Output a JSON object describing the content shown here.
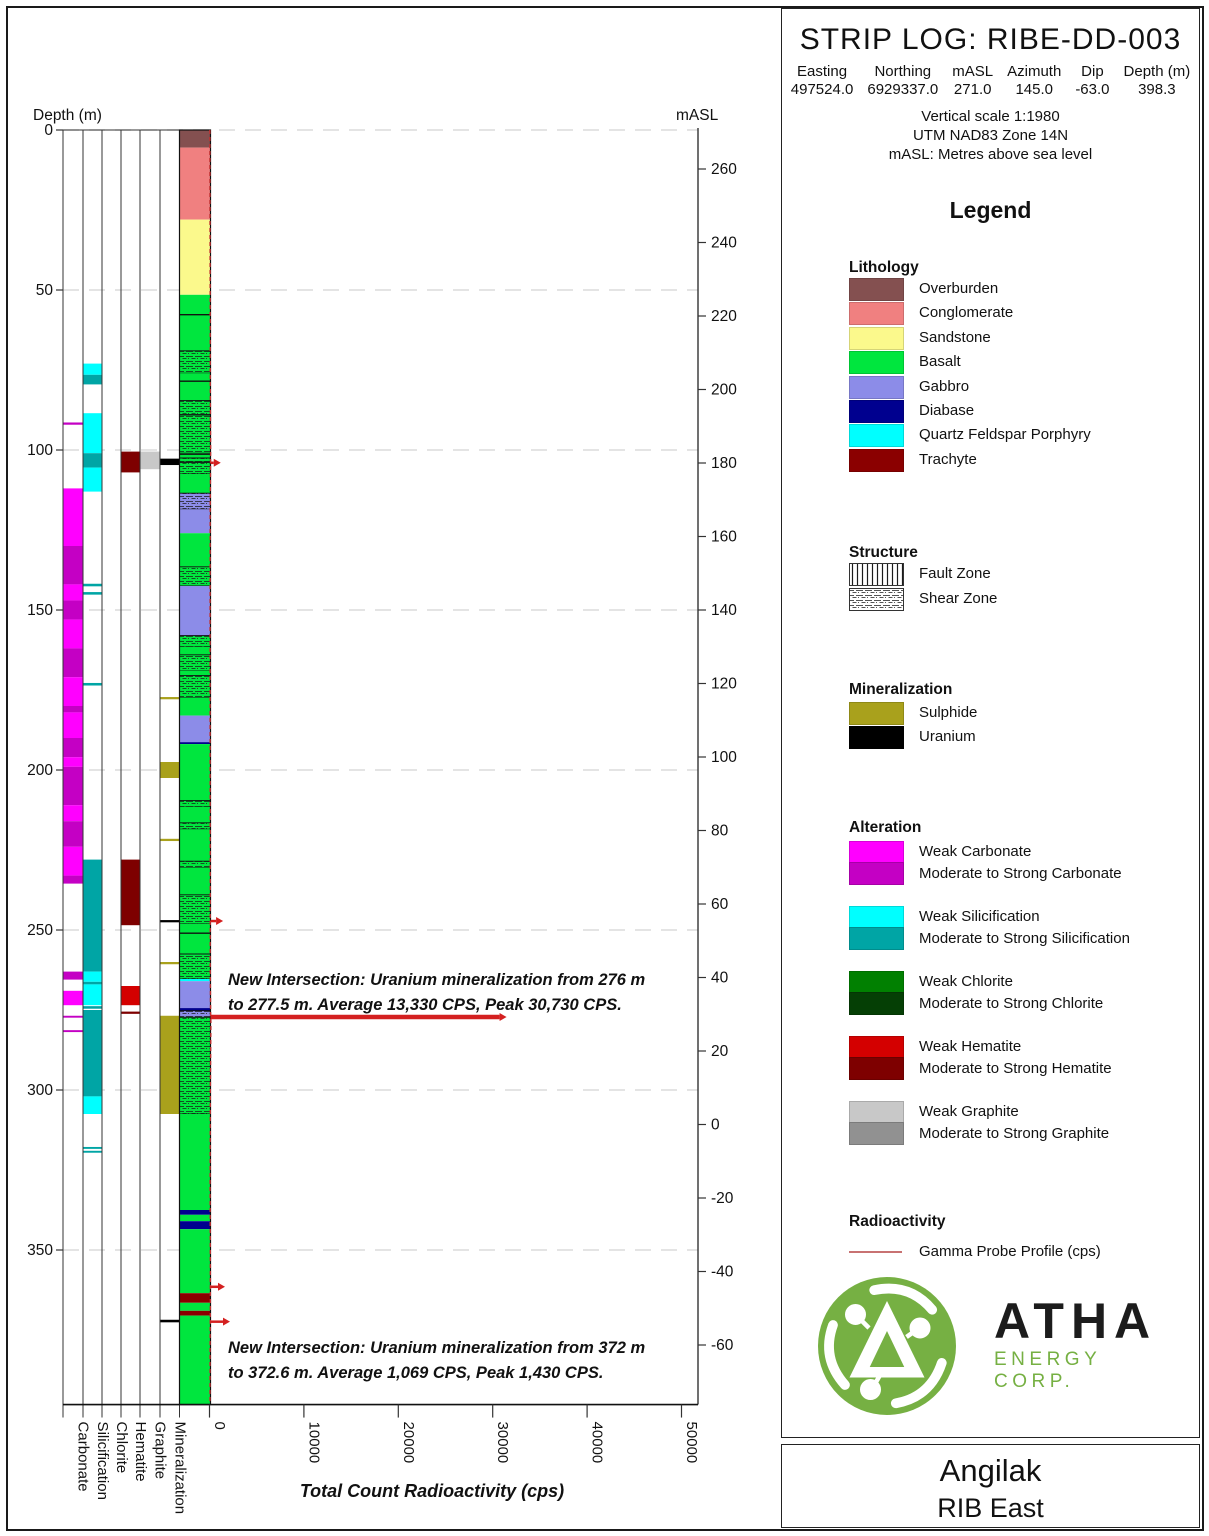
{
  "header": {
    "title": "STRIP LOG: RIBE-DD-003",
    "fields": [
      {
        "label": "Easting",
        "value": "497524.0"
      },
      {
        "label": "Northing",
        "value": "6929337.0"
      },
      {
        "label": "mASL",
        "value": "271.0"
      },
      {
        "label": "Azimuth",
        "value": "145.0"
      },
      {
        "label": "Dip",
        "value": "-63.0"
      },
      {
        "label": "Depth (m)",
        "value": "398.3"
      }
    ],
    "notes": [
      "Vertical scale 1:1980",
      "UTM NAD83 Zone 14N",
      "mASL: Metres above sea level"
    ]
  },
  "legend": {
    "title": "Legend",
    "lithology": {
      "heading": "Lithology",
      "items": [
        {
          "label": "Overburden",
          "color": "#845050"
        },
        {
          "label": "Conglomerate",
          "color": "#f08080"
        },
        {
          "label": "Sandstone",
          "color": "#fbf98c"
        },
        {
          "label": "Basalt",
          "color": "#00e63e"
        },
        {
          "label": "Gabbro",
          "color": "#8c8ce8"
        },
        {
          "label": "Diabase",
          "color": "#00008f"
        },
        {
          "label": "Quartz Feldspar Porphyry",
          "color": "#00ffff"
        },
        {
          "label": "Trachyte",
          "color": "#8b0000"
        }
      ]
    },
    "structure": {
      "heading": "Structure",
      "items": [
        {
          "label": "Fault Zone",
          "pattern": "fault"
        },
        {
          "label": "Shear Zone",
          "pattern": "shear"
        }
      ]
    },
    "mineralization": {
      "heading": "Mineralization",
      "items": [
        {
          "label": "Sulphide",
          "color": "#a9a11c"
        },
        {
          "label": "Uranium",
          "color": "#000000"
        }
      ]
    },
    "alteration": {
      "heading": "Alteration",
      "groups": [
        {
          "weak_label": "Weak Carbonate",
          "strong_label": "Moderate to Strong Carbonate",
          "weak_color": "#ff00ff",
          "strong_color": "#c400c4"
        },
        {
          "weak_label": "Weak Silicification",
          "strong_label": "Moderate to Strong Silicification",
          "weak_color": "#00ffff",
          "strong_color": "#00a5a5"
        },
        {
          "weak_label": "Weak Chlorite",
          "strong_label": "Moderate to Strong Chlorite",
          "weak_color": "#018001",
          "strong_color": "#053f05"
        },
        {
          "weak_label": "Weak Hematite",
          "strong_label": "Moderate to Strong Hematite",
          "weak_color": "#d40000",
          "strong_color": "#7e0000"
        },
        {
          "weak_label": "Weak Graphite",
          "strong_label": "Moderate to Strong Graphite",
          "weak_color": "#c8c8c8",
          "strong_color": "#919191"
        }
      ]
    },
    "radioactivity": {
      "heading": "Radioactivity",
      "line_label": "Gamma Probe Profile (cps)",
      "line_color": "#c87272"
    }
  },
  "logo": {
    "name": "ATHA",
    "sub": "ENERGY CORP.",
    "green": "#76b043"
  },
  "footer": {
    "line1": "Angilak",
    "line2": "RIB East"
  },
  "chart_data": {
    "type": "strip-log",
    "hole_id": "RIBE-DD-003",
    "max_depth_m": 398.3,
    "depth_axis": {
      "label": "Depth (m)",
      "ticks": [
        0,
        50,
        100,
        150,
        200,
        250,
        300,
        350
      ]
    },
    "masl_axis": {
      "label": "mASL",
      "ticks": [
        260,
        240,
        220,
        200,
        180,
        160,
        140,
        120,
        100,
        80,
        60,
        40,
        20,
        0,
        -20,
        -40,
        -60
      ]
    },
    "gamma_axis": {
      "title": "Total Count Radioactivity (cps)",
      "ticks": [
        0,
        10000,
        20000,
        30000,
        40000,
        50000
      ],
      "max": 50000,
      "profile_color": "#d42020"
    },
    "columns": [
      {
        "key": "carbonate",
        "label": "Carbonate"
      },
      {
        "key": "silicification",
        "label": "Silicification"
      },
      {
        "key": "chlorite",
        "label": "Chlorite"
      },
      {
        "key": "hematite",
        "label": "Hematite"
      },
      {
        "key": "graphite",
        "label": "Graphite"
      },
      {
        "key": "mineralization",
        "label": "Mineralization"
      }
    ],
    "alteration_intervals": {
      "carbonate": [
        {
          "from": 91.4,
          "to": 92.1,
          "grade": "strong"
        },
        {
          "from": 112,
          "to": 130,
          "grade": "weak"
        },
        {
          "from": 130,
          "to": 142,
          "grade": "strong"
        },
        {
          "from": 142,
          "to": 147,
          "grade": "weak"
        },
        {
          "from": 147,
          "to": 153,
          "grade": "strong"
        },
        {
          "from": 153,
          "to": 162,
          "grade": "weak"
        },
        {
          "from": 162,
          "to": 171,
          "grade": "strong"
        },
        {
          "from": 171,
          "to": 180,
          "grade": "weak"
        },
        {
          "from": 180,
          "to": 182,
          "grade": "strong"
        },
        {
          "from": 182,
          "to": 190,
          "grade": "weak"
        },
        {
          "from": 190,
          "to": 196,
          "grade": "strong"
        },
        {
          "from": 196,
          "to": 199,
          "grade": "weak"
        },
        {
          "from": 199,
          "to": 211,
          "grade": "strong"
        },
        {
          "from": 211,
          "to": 216,
          "grade": "weak"
        },
        {
          "from": 216,
          "to": 224,
          "grade": "strong"
        },
        {
          "from": 224,
          "to": 233,
          "grade": "weak"
        },
        {
          "from": 233,
          "to": 235.5,
          "grade": "strong"
        },
        {
          "from": 263,
          "to": 265.5,
          "grade": "strong"
        },
        {
          "from": 269,
          "to": 273.5,
          "grade": "weak"
        },
        {
          "from": 276.8,
          "to": 277.4,
          "grade": "strong"
        },
        {
          "from": 281.3,
          "to": 281.9,
          "grade": "strong"
        }
      ],
      "silicification": [
        {
          "from": 73,
          "to": 76.5,
          "grade": "weak"
        },
        {
          "from": 76.5,
          "to": 79.5,
          "grade": "strong"
        },
        {
          "from": 88.5,
          "to": 101,
          "grade": "weak"
        },
        {
          "from": 101,
          "to": 105.5,
          "grade": "strong"
        },
        {
          "from": 105.5,
          "to": 113,
          "grade": "weak"
        },
        {
          "from": 141.8,
          "to": 142.6,
          "grade": "strong"
        },
        {
          "from": 144.4,
          "to": 145.2,
          "grade": "strong"
        },
        {
          "from": 172.8,
          "to": 173.6,
          "grade": "strong"
        },
        {
          "from": 228,
          "to": 263,
          "grade": "strong"
        },
        {
          "from": 263,
          "to": 266.2,
          "grade": "weak"
        },
        {
          "from": 266.2,
          "to": 267,
          "grade": "strong"
        },
        {
          "from": 267,
          "to": 273.5,
          "grade": "weak"
        },
        {
          "from": 273.8,
          "to": 274.6,
          "grade": "strong"
        },
        {
          "from": 275,
          "to": 302,
          "grade": "strong"
        },
        {
          "from": 302,
          "to": 307.5,
          "grade": "weak"
        },
        {
          "from": 317.8,
          "to": 318.4,
          "grade": "strong"
        },
        {
          "from": 319,
          "to": 319.6,
          "grade": "strong"
        }
      ],
      "chlorite": [],
      "hematite": [
        {
          "from": 100.5,
          "to": 107,
          "grade": "strong"
        },
        {
          "from": 228,
          "to": 248.5,
          "grade": "strong"
        },
        {
          "from": 267.5,
          "to": 273.5,
          "grade": "weak"
        },
        {
          "from": 275.5,
          "to": 276.2,
          "grade": "strong"
        }
      ],
      "graphite": [
        {
          "from": 100.5,
          "to": 106,
          "grade": "weak"
        }
      ],
      "mineralization": [
        {
          "from": 102.7,
          "to": 104.7,
          "kind": "uranium"
        },
        {
          "from": 177.2,
          "to": 177.9,
          "kind": "sulphide"
        },
        {
          "from": 197.5,
          "to": 202.5,
          "kind": "sulphide"
        },
        {
          "from": 221.5,
          "to": 222.2,
          "kind": "sulphide"
        },
        {
          "from": 246.9,
          "to": 247.6,
          "kind": "uranium"
        },
        {
          "from": 260,
          "to": 260.7,
          "kind": "sulphide"
        },
        {
          "from": 276.8,
          "to": 307.5,
          "kind": "sulphide"
        },
        {
          "from": 371.8,
          "to": 372.6,
          "kind": "uranium"
        }
      ]
    },
    "lithology_intervals": [
      {
        "from": 0,
        "to": 5.5,
        "unit": "Overburden"
      },
      {
        "from": 5.5,
        "to": 28,
        "unit": "Conglomerate"
      },
      {
        "from": 28,
        "to": 51.5,
        "unit": "Sandstone"
      },
      {
        "from": 51.5,
        "to": 69,
        "unit": "Basalt"
      },
      {
        "from": 69,
        "to": 76,
        "unit": "Basalt",
        "shear": true
      },
      {
        "from": 76,
        "to": 84.5,
        "unit": "Basalt"
      },
      {
        "from": 84.5,
        "to": 101,
        "unit": "Basalt",
        "shear": true
      },
      {
        "from": 101,
        "to": 102.5,
        "unit": "Basalt"
      },
      {
        "from": 102.5,
        "to": 107.5,
        "unit": "Basalt",
        "shear": true
      },
      {
        "from": 107.5,
        "to": 113.5,
        "unit": "Basalt"
      },
      {
        "from": 113.5,
        "to": 118.5,
        "unit": "Gabbro",
        "shear": true
      },
      {
        "from": 118.5,
        "to": 126,
        "unit": "Gabbro"
      },
      {
        "from": 126,
        "to": 136.5,
        "unit": "Basalt"
      },
      {
        "from": 136.5,
        "to": 142.5,
        "unit": "Basalt",
        "shear": true
      },
      {
        "from": 142.5,
        "to": 158,
        "unit": "Gabbro"
      },
      {
        "from": 158,
        "to": 161.5,
        "unit": "Basalt",
        "shear": true
      },
      {
        "from": 161.5,
        "to": 164,
        "unit": "Basalt"
      },
      {
        "from": 164,
        "to": 169,
        "unit": "Basalt",
        "shear": true
      },
      {
        "from": 169,
        "to": 170.5,
        "unit": "Basalt"
      },
      {
        "from": 170.5,
        "to": 177.5,
        "unit": "Basalt",
        "shear": true
      },
      {
        "from": 177.5,
        "to": 183,
        "unit": "Basalt"
      },
      {
        "from": 183,
        "to": 191.3,
        "unit": "Gabbro"
      },
      {
        "from": 191.3,
        "to": 191.9,
        "unit": "Diabase"
      },
      {
        "from": 191.9,
        "to": 209.5,
        "unit": "Basalt"
      },
      {
        "from": 209.5,
        "to": 211.5,
        "unit": "Basalt",
        "shear": true
      },
      {
        "from": 211.5,
        "to": 216.5,
        "unit": "Basalt"
      },
      {
        "from": 216.5,
        "to": 218.5,
        "unit": "Basalt",
        "shear": true
      },
      {
        "from": 218.5,
        "to": 228.5,
        "unit": "Basalt"
      },
      {
        "from": 228.5,
        "to": 230.5,
        "unit": "Basalt",
        "shear": true
      },
      {
        "from": 230.5,
        "to": 239,
        "unit": "Basalt"
      },
      {
        "from": 239,
        "to": 248,
        "unit": "Basalt",
        "shear": true
      },
      {
        "from": 248,
        "to": 257.5,
        "unit": "Basalt"
      },
      {
        "from": 257.5,
        "to": 265.3,
        "unit": "Basalt",
        "shear": true
      },
      {
        "from": 265.3,
        "to": 266,
        "unit": "Quartz Feldspar Porphyry"
      },
      {
        "from": 266,
        "to": 274.4,
        "unit": "Gabbro"
      },
      {
        "from": 274.4,
        "to": 275.2,
        "unit": "Diabase"
      },
      {
        "from": 275.2,
        "to": 277.3,
        "unit": "Gabbro",
        "shear": true
      },
      {
        "from": 277.3,
        "to": 307.5,
        "unit": "Basalt",
        "shear": true
      },
      {
        "from": 307.5,
        "to": 337.5,
        "unit": "Basalt"
      },
      {
        "from": 337.5,
        "to": 339,
        "unit": "Diabase"
      },
      {
        "from": 339,
        "to": 341,
        "unit": "Basalt"
      },
      {
        "from": 341,
        "to": 343.5,
        "unit": "Diabase"
      },
      {
        "from": 343.5,
        "to": 363.5,
        "unit": "Basalt"
      },
      {
        "from": 363.5,
        "to": 366.5,
        "unit": "Trachyte"
      },
      {
        "from": 366.5,
        "to": 369,
        "unit": "Basalt"
      },
      {
        "from": 369,
        "to": 370.5,
        "unit": "Trachyte"
      },
      {
        "from": 370.5,
        "to": 398.3,
        "unit": "Basalt"
      }
    ],
    "contact_lines": [
      57.7,
      78.5,
      89,
      101.3,
      103.8,
      251
    ],
    "gamma_profile": [
      {
        "d": 0,
        "v": 40
      },
      {
        "d": 30,
        "v": 55
      },
      {
        "d": 51,
        "v": 70
      },
      {
        "d": 80,
        "v": 80
      },
      {
        "d": 100,
        "v": 120
      },
      {
        "d": 120,
        "v": 70
      },
      {
        "d": 160,
        "v": 60
      },
      {
        "d": 200,
        "v": 65
      },
      {
        "d": 240,
        "v": 80
      },
      {
        "d": 260,
        "v": 70
      },
      {
        "d": 276,
        "v": 120
      },
      {
        "d": 279,
        "v": 150
      },
      {
        "d": 300,
        "v": 90
      },
      {
        "d": 330,
        "v": 60
      },
      {
        "d": 355,
        "v": 90
      },
      {
        "d": 368,
        "v": 90
      },
      {
        "d": 380,
        "v": 60
      },
      {
        "d": 398.3,
        "v": 50
      }
    ],
    "gamma_spikes": [
      {
        "depth": 104,
        "cps": 450,
        "thick": 2.5
      },
      {
        "depth": 247.2,
        "cps": 700,
        "thick": 2.5
      },
      {
        "depth": 277.2,
        "cps": 30730,
        "thick": 4.5
      },
      {
        "depth": 361.5,
        "cps": 900,
        "thick": 2.5
      },
      {
        "depth": 372.4,
        "cps": 1430,
        "thick": 2.5
      }
    ],
    "annotations": [
      {
        "lines": [
          "New Intersection: Uranium mineralization from 276 m",
          "to 277.5 m. Average 13,330 CPS, Peak 30,730 CPS."
        ],
        "depth": 267.2
      },
      {
        "lines": [
          "New Intersection: Uranium mineralization from 372 m",
          "to 372.6 m. Average 1,069 CPS, Peak 1,430 CPS."
        ],
        "depth": 382.2
      }
    ]
  }
}
